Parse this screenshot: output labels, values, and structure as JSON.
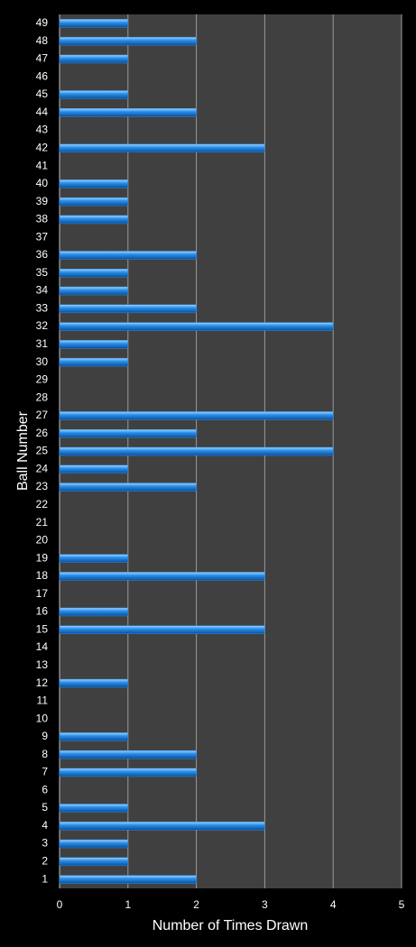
{
  "chart_data": {
    "type": "barh",
    "xlabel": "Number of Times Drawn",
    "ylabel": "Ball Number",
    "categories": [
      "1",
      "2",
      "3",
      "4",
      "5",
      "6",
      "7",
      "8",
      "9",
      "10",
      "11",
      "12",
      "13",
      "14",
      "15",
      "16",
      "17",
      "18",
      "19",
      "20",
      "21",
      "22",
      "23",
      "24",
      "25",
      "26",
      "27",
      "28",
      "29",
      "30",
      "31",
      "32",
      "33",
      "34",
      "35",
      "36",
      "37",
      "38",
      "39",
      "40",
      "41",
      "42",
      "43",
      "44",
      "45",
      "46",
      "47",
      "48",
      "49"
    ],
    "values": [
      2,
      1,
      1,
      3,
      1,
      0,
      2,
      2,
      1,
      0,
      0,
      1,
      0,
      0,
      3,
      1,
      0,
      3,
      1,
      0,
      0,
      0,
      2,
      1,
      4,
      2,
      4,
      0,
      0,
      1,
      1,
      4,
      2,
      1,
      1,
      2,
      0,
      1,
      1,
      1,
      0,
      3,
      0,
      2,
      1,
      0,
      1,
      2,
      1
    ],
    "color": "#2a8ee8",
    "xlim": [
      0,
      5
    ],
    "xticks": [
      0,
      1,
      2,
      3,
      4,
      5
    ],
    "grid": true
  }
}
